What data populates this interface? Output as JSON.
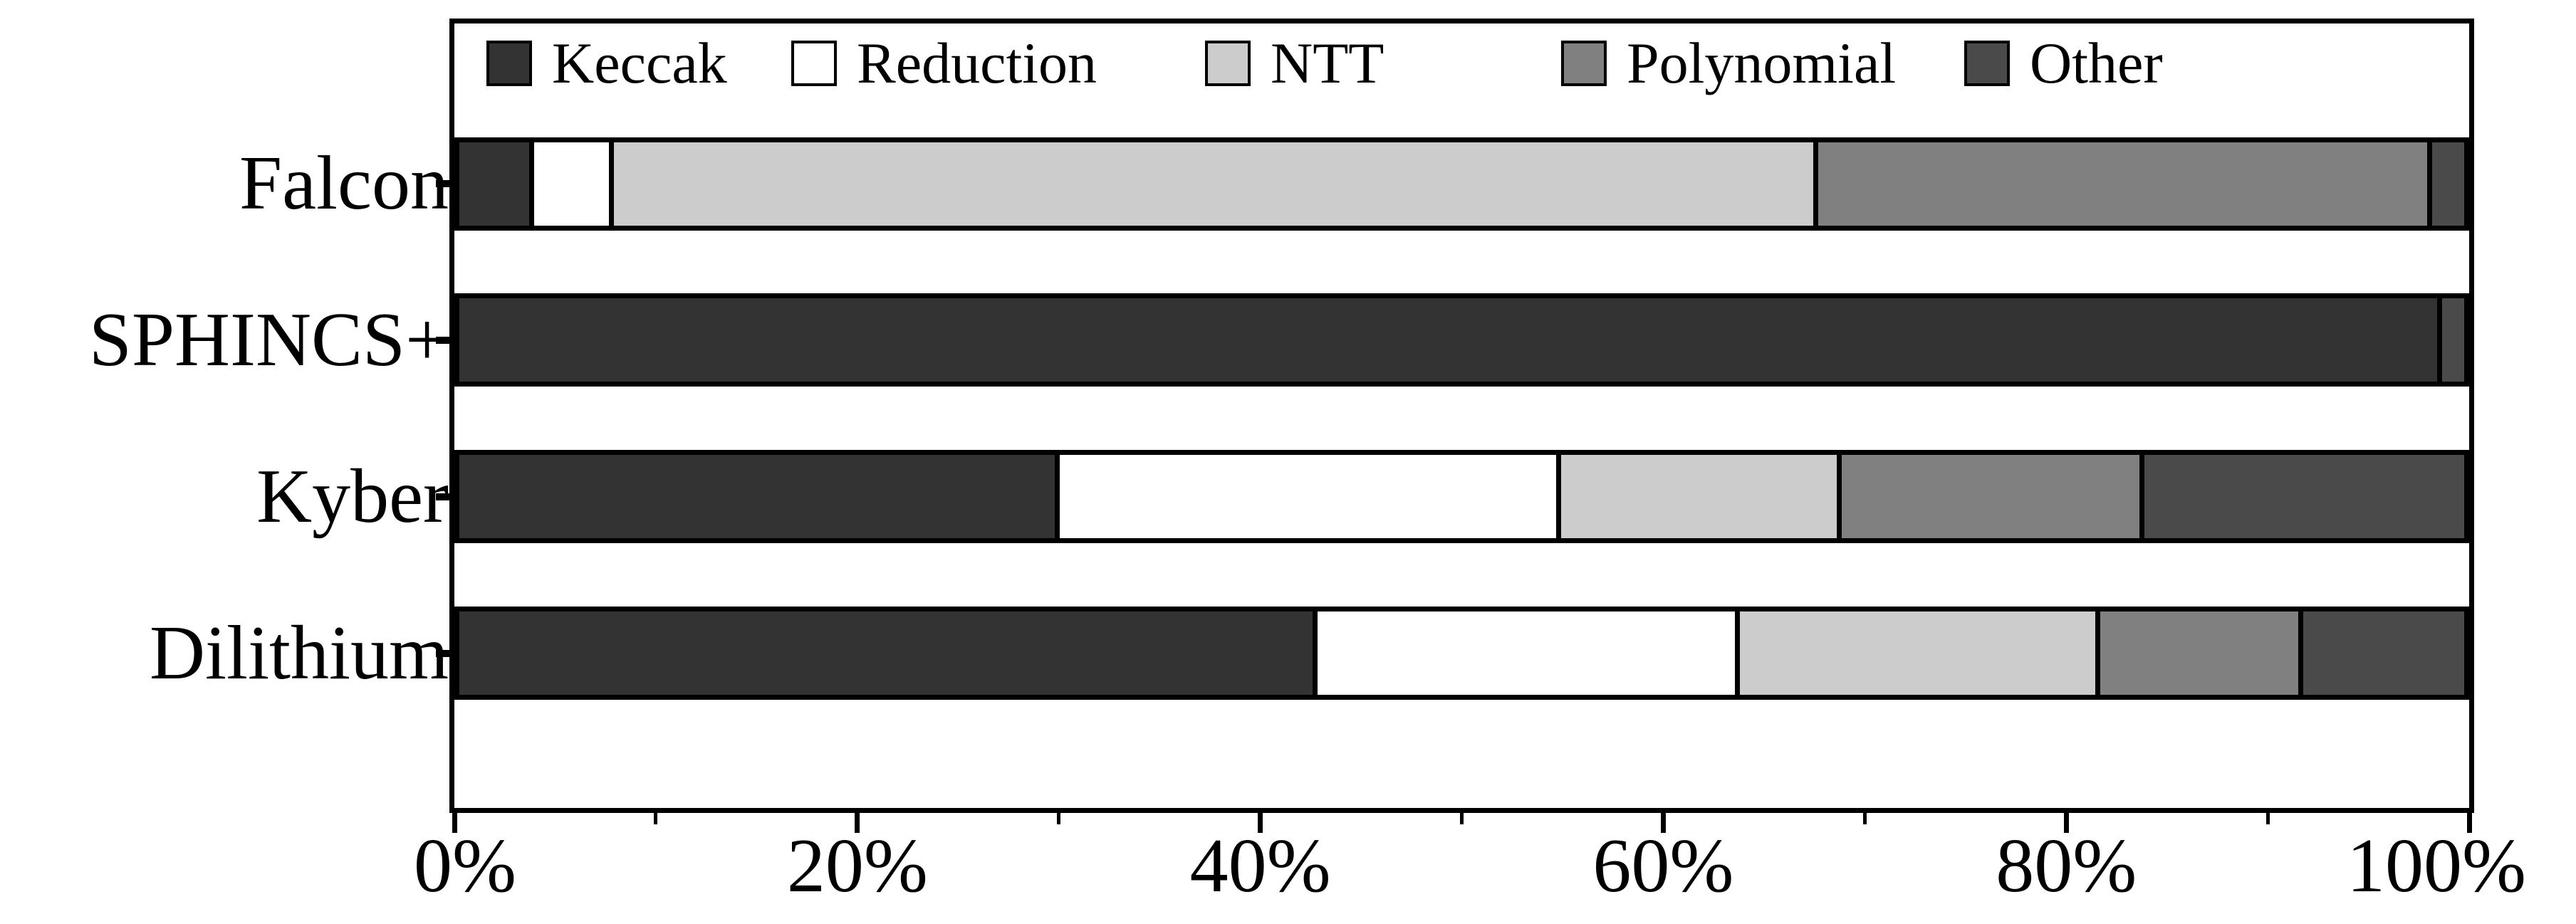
{
  "chart_data": {
    "type": "bar",
    "variant": "horizontal-stacked-100pct",
    "title": "",
    "categories": [
      "Falcon",
      "SPHINCS+",
      "Kyber",
      "Dilithium"
    ],
    "series": [
      {
        "name": "Keccak",
        "color": "#333333",
        "values": [
          3.5,
          98.9,
          30.0,
          43.0
        ]
      },
      {
        "name": "Reduction",
        "color": "#ffffff",
        "values": [
          3.8,
          0,
          25.0,
          21.0
        ]
      },
      {
        "name": "NTT",
        "color": "#cccccc",
        "values": [
          60.4,
          0,
          13.9,
          17.9
        ]
      },
      {
        "name": "Polynomial",
        "color": "#808080",
        "values": [
          30.7,
          0,
          15.0,
          10.0
        ]
      },
      {
        "name": "Other",
        "color": "#4a4a4a",
        "values": [
          1.6,
          1.1,
          16.1,
          8.1
        ]
      }
    ],
    "x_axis": {
      "range": [
        0,
        100
      ],
      "ticks_major_labels": [
        "0%",
        "20%",
        "40%",
        "60%",
        "80%",
        "100%"
      ],
      "ticks_major_values": [
        0,
        20,
        40,
        60,
        80,
        100
      ],
      "ticks_minor_values": [
        10,
        30,
        50,
        70,
        90
      ],
      "unit": "percent"
    },
    "y_axis": {
      "categories_top_to_bottom": [
        "Falcon",
        "SPHINCS+",
        "Kyber",
        "Dilithium"
      ]
    },
    "legend_position": "top-left-inside",
    "grid": false,
    "colors": {
      "axis": "#000000",
      "background": "#ffffff"
    }
  }
}
